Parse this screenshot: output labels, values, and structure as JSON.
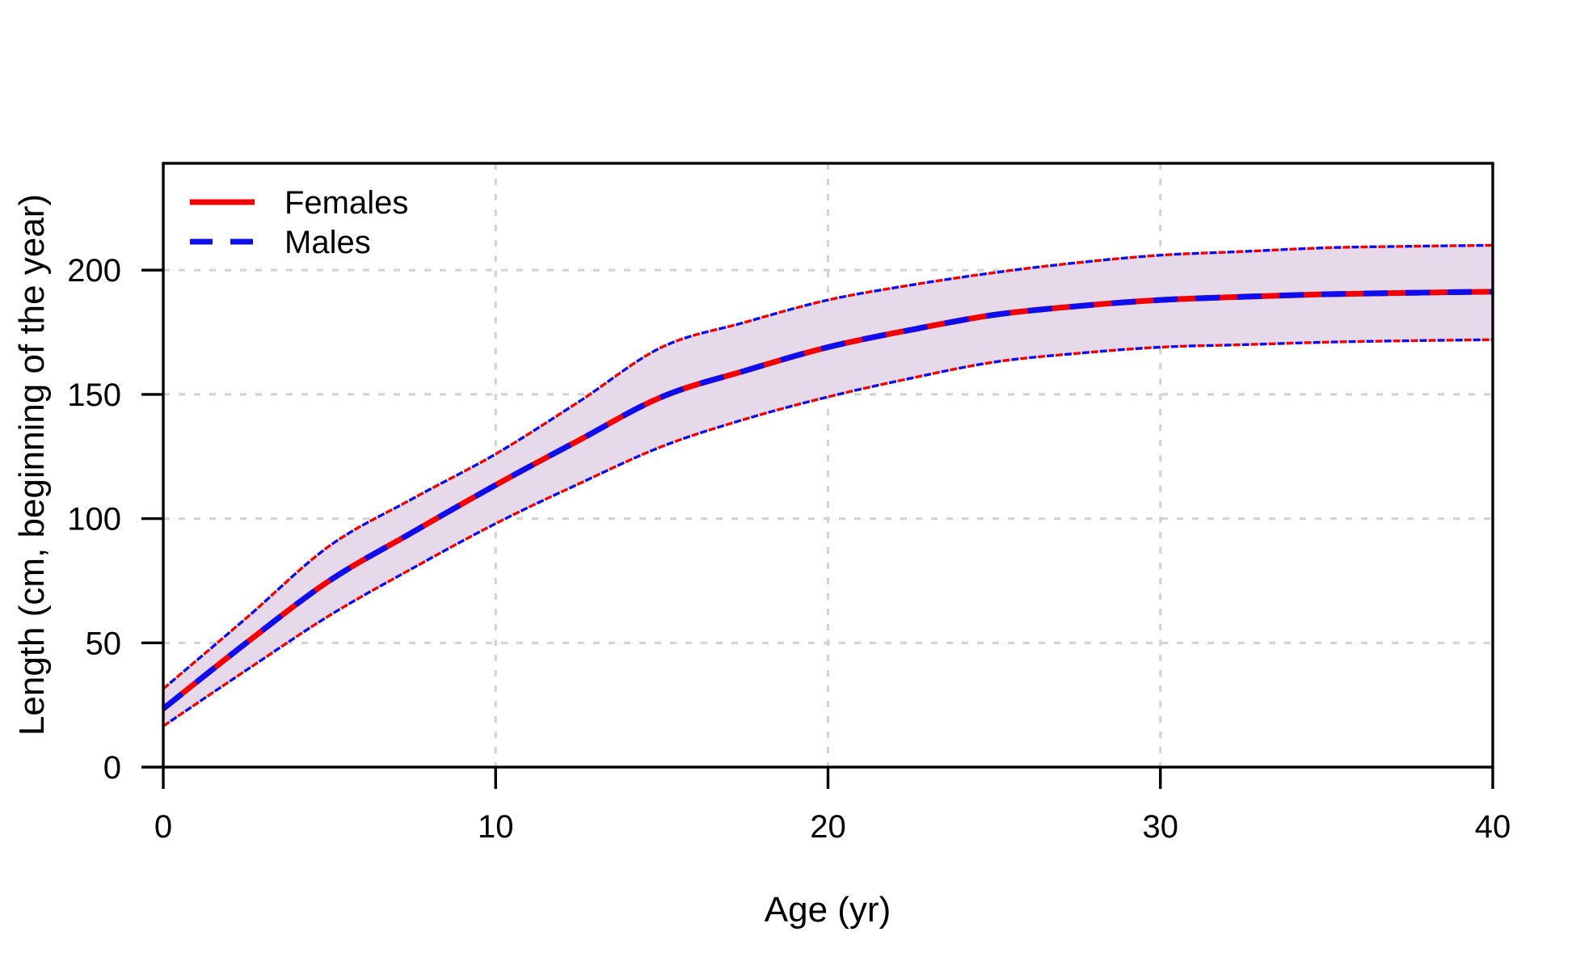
{
  "figure": {
    "background": "#ffffff",
    "axis_color": "#000000",
    "grid_color": "#d3d3d3",
    "band_fill": "#e6d9e9",
    "female_color": "#f20202",
    "male_color": "#0d0dee"
  },
  "legend": {
    "position": "top-left",
    "items": [
      {
        "label": "Females",
        "style": "solid",
        "color": "#f20202"
      },
      {
        "label": "Males",
        "style": "dashed",
        "color": "#0d0dee"
      }
    ]
  },
  "chart_data": {
    "type": "line",
    "title": "",
    "xlabel": "Age (yr)",
    "ylabel": "Length (cm, beginning of the year)",
    "xlim": [
      0,
      40
    ],
    "ylim": [
      0,
      243
    ],
    "x_ticks": [
      0,
      10,
      20,
      30,
      40
    ],
    "y_ticks": [
      0,
      50,
      100,
      150,
      200
    ],
    "grid": "dotted lightgray lines at every axis tick",
    "legend_position": "top-left inside plot",
    "note": "Female (red solid) and male (blue dashed) growth curves coincide exactly; shaded lavender band bounded by red/blue dotted lines is the confidence envelope around the shared curve.",
    "x": [
      0,
      2.5,
      5,
      7.5,
      10,
      12.5,
      15,
      17.5,
      20,
      22.5,
      25,
      27.5,
      30,
      32.5,
      35,
      37.5,
      40
    ],
    "series": [
      {
        "name": "Females",
        "style": "solid",
        "color": "#f20202",
        "values": [
          23.5,
          50,
          75,
          94.5,
          113.5,
          131.5,
          149,
          159.5,
          169,
          176,
          182,
          185.5,
          188,
          189.3,
          190.3,
          190.9,
          191.3
        ]
      },
      {
        "name": "Males",
        "style": "dashed",
        "color": "#0d0dee",
        "values": [
          23.5,
          50,
          75,
          94.5,
          113.5,
          131.5,
          149,
          159.5,
          169,
          176,
          182,
          185.5,
          188,
          189.3,
          190.3,
          190.9,
          191.3
        ]
      },
      {
        "name": "confidence_lower",
        "style": "dotted-band-edge",
        "values": [
          16.5,
          39,
          61,
          80,
          98,
          114,
          129,
          140,
          149,
          156.5,
          163,
          166.5,
          169,
          170,
          171,
          171.6,
          172
        ]
      },
      {
        "name": "confidence_upper",
        "style": "dotted-band-edge",
        "values": [
          31.5,
          60,
          89,
          108,
          126,
          147,
          169,
          179,
          188,
          194,
          199,
          203,
          206,
          207.5,
          209,
          209.6,
          210
        ]
      }
    ]
  }
}
